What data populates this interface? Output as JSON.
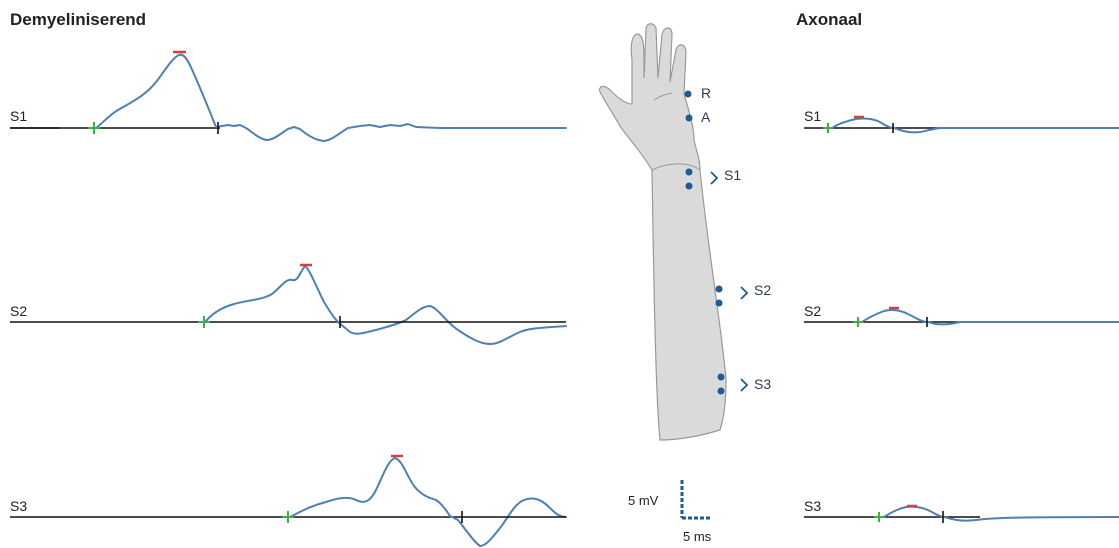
{
  "left_title": "Demyeliniserend",
  "right_title": "Axonaal",
  "stimulation_sites": [
    "S1",
    "S2",
    "S3"
  ],
  "arm_labels": {
    "recording": "R",
    "reference": "A",
    "sites": [
      "S1",
      "S2",
      "S3"
    ]
  },
  "scale_bar": {
    "amplitude": "5 mV",
    "time": "5 ms"
  },
  "colors": {
    "trace": "#4e80b5",
    "onset_marker": "#3cb043",
    "peak_marker": "#d43f3f",
    "electrode": "#1f5a96",
    "arm": "#dadada"
  }
}
